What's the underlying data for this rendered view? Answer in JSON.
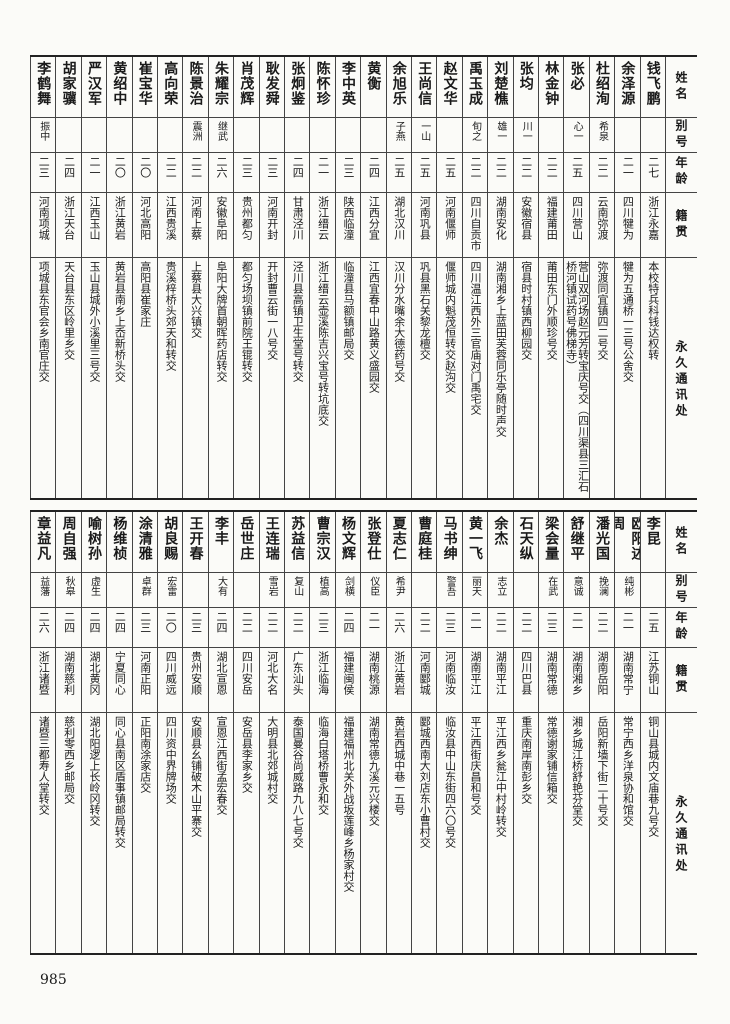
{
  "header": [
    "姓名",
    "别号",
    "年龄",
    "籍贯",
    "永久通讯处"
  ],
  "tables": [
    {
      "rows": [
        [
          "钱飞鹏",
          null,
          "二七",
          "浙江永嘉",
          "本校特兵科钱达权转"
        ],
        [
          "余泽源",
          null,
          "二一",
          "四川犍为",
          "犍为五通桥一三号公舍交"
        ],
        [
          "杜绍洵",
          "希泉",
          "二二",
          "云南弥渡",
          "弥渡同宜镇四二号交"
        ],
        [
          "张必",
          "心一",
          "二五",
          "四川营山",
          "营山双河场赵元芳转宝庆号交（四川渠县三汇石桥河镇试药号佛梯寺）"
        ],
        [
          "林金钟",
          null,
          "二二",
          "福建莆田",
          "莆田东门外顺珍号交"
        ],
        [
          "张均",
          "川一",
          "二二",
          "安徽宿县",
          "宿县时村镇西柳园交"
        ],
        [
          "刘楚樵",
          "雄一",
          "二二",
          "湖南安化",
          "湖南湘乡上蓝田芙蓉同乐亭随时声交"
        ],
        [
          "禹玉成",
          "旬之",
          "二二",
          "四川自贡市",
          "四川温江西外三官庙对门禹宅交"
        ],
        [
          "赵文华",
          null,
          "二五",
          "河南偃师",
          "偃师城内魁茂恒转交赵沟交"
        ],
        [
          "王尚信",
          "一山",
          "二五",
          "河南巩县",
          "巩县黑石关黎龙檀交"
        ],
        [
          "余旭乐",
          "子燕",
          "二五",
          "湖北汉川",
          "汉川分水嘴余大德药号交"
        ],
        [
          "黄衡",
          null,
          "二四",
          "江西分宜",
          "江西宜春中山路黄义盛园交"
        ],
        [
          "李中英",
          null,
          "二三",
          "陕西临潼",
          "临潼县马额镇邮局交"
        ],
        [
          "陈怀珍",
          null,
          "二一",
          "浙江缙云",
          "浙江缙云壶溪陈吉兴宝号转坑底交"
        ],
        [
          "张炯鉴",
          null,
          "二四",
          "甘肃泾川",
          "泾川县高镇卫生堂号转交"
        ],
        [
          "耿发舜",
          null,
          "二三",
          "河南开封",
          "开封曹云街一八号交"
        ],
        [
          "肖茂辉",
          null,
          "二三",
          "贵州都匀",
          "都匀场坝镇前院王锟转交"
        ],
        [
          "朱耀宗",
          "继武",
          "二六",
          "安徽阜阳",
          "阜阳大牌首朝晖药店转交"
        ],
        [
          "陈景治",
          "震洲",
          "二二",
          "河南上蔡",
          "上蔡县大兴镇交"
        ],
        [
          "高向荣",
          null,
          "二二",
          "江西贵溪",
          "贵溪梓桥头郊天和转交"
        ],
        [
          "崔宝华",
          null,
          "二〇",
          "河北高阳",
          "高阳县崔家庄"
        ],
        [
          "黄绍中",
          null,
          "二〇",
          "浙江黄岩",
          "黄岩县南乡上岙新桥头交"
        ],
        [
          "严汉军",
          null,
          "二一",
          "江西玉山",
          "玉山县城外小溪里三号交"
        ],
        [
          "胡家骥",
          null,
          "二四",
          "浙江天台",
          "天台县东区岭里乡交"
        ],
        [
          "李鹤舞",
          "振中",
          "二三",
          "河南项城",
          "项城县东官会乡南官庄交"
        ]
      ]
    },
    {
      "rows": [
        [
          "李昆",
          null,
          "二五",
          "江苏铜山",
          "铜山县城内文庙巷九号交"
        ],
        [
          "欧阳述周",
          "纯彬",
          "二一",
          "湖南常宁",
          "常宁西乡洋泉协和馆交"
        ],
        [
          "潘光国",
          "挽澜",
          "二二",
          "湖南岳阳",
          "岳阳新墙下街二十号交"
        ],
        [
          "舒继平",
          "意诚",
          "二一",
          "湖南湘乡",
          "湘乡城江桥舒艳芬堂交"
        ],
        [
          "梁会量",
          "在武",
          "二三",
          "湖南常德",
          "常德谢家铺信箱交"
        ],
        [
          "石天纵",
          null,
          "二二",
          "四川巴县",
          "重庆南岸南彭乡交"
        ],
        [
          "余杰",
          "志立",
          "二二",
          "湖南平江",
          "平江西乡瓮江中村岭转交"
        ],
        [
          "黄一飞",
          "丽天",
          "二一",
          "湖南平江",
          "平江西街庆昌和号交"
        ],
        [
          "马书绅",
          "警吾",
          "二三",
          "河南临汝",
          "临汝县中山东街四六〇号交"
        ],
        [
          "曹庭桂",
          null,
          "二二",
          "河南郾城",
          "郾城西南大刘店东小曹村交"
        ],
        [
          "夏志仁",
          "希尹",
          "二六",
          "浙江黄岩",
          "黄岩西城中巷一五号"
        ],
        [
          "张登仕",
          "仪臣",
          "二一",
          "湖南桃源",
          "湖南常德九溪元兴楼交"
        ],
        [
          "杨文辉",
          "剑横",
          "二四",
          "福建闽侯",
          "福建福州北关外战坂莲峰乡杨家村交"
        ],
        [
          "曹宗汉",
          "植高",
          "二三",
          "浙江临海",
          "临海白塔桥曹永和交"
        ],
        [
          "苏益信",
          "复山",
          "二二",
          "广东汕头",
          "泰国曼谷尚威路九八七号交"
        ],
        [
          "王连瑞",
          "雪岩",
          "二二",
          "河北大名",
          "大明县北郊城村交"
        ],
        [
          "岳世庄",
          null,
          "二二",
          "四川安岳",
          "安岳县李家乡交"
        ],
        [
          "李丰",
          "大有",
          "二四",
          "湖北宣恩",
          "宣恩江西街孟宏春交"
        ],
        [
          "王开春",
          null,
          "二三",
          "贵州安顺",
          "安顺县幺铺破木山平寨交"
        ],
        [
          "胡良赐",
          "宏雷",
          "二〇",
          "四川威远",
          "四川资中界牌场交"
        ],
        [
          "涂清雅",
          "卓群",
          "二三",
          "河南正阳",
          "正阳南涂家店交"
        ],
        [
          "杨维桢",
          null,
          "二四",
          "宁夏同心",
          "同心县南区盾事镇邮局转交"
        ],
        [
          "喻树孙",
          "虚生",
          "二四",
          "湖北黄冈",
          "湖北阳逻上长岭冈转交"
        ],
        [
          "周自强",
          "秋皋",
          "二四",
          "湖南慈利",
          "慈利零西乡邮局交"
        ],
        [
          "章益凡",
          "益藩",
          "二六",
          "浙江诸暨",
          "诸暨三都寿人堂转交"
        ]
      ]
    }
  ],
  "page_number": "985"
}
